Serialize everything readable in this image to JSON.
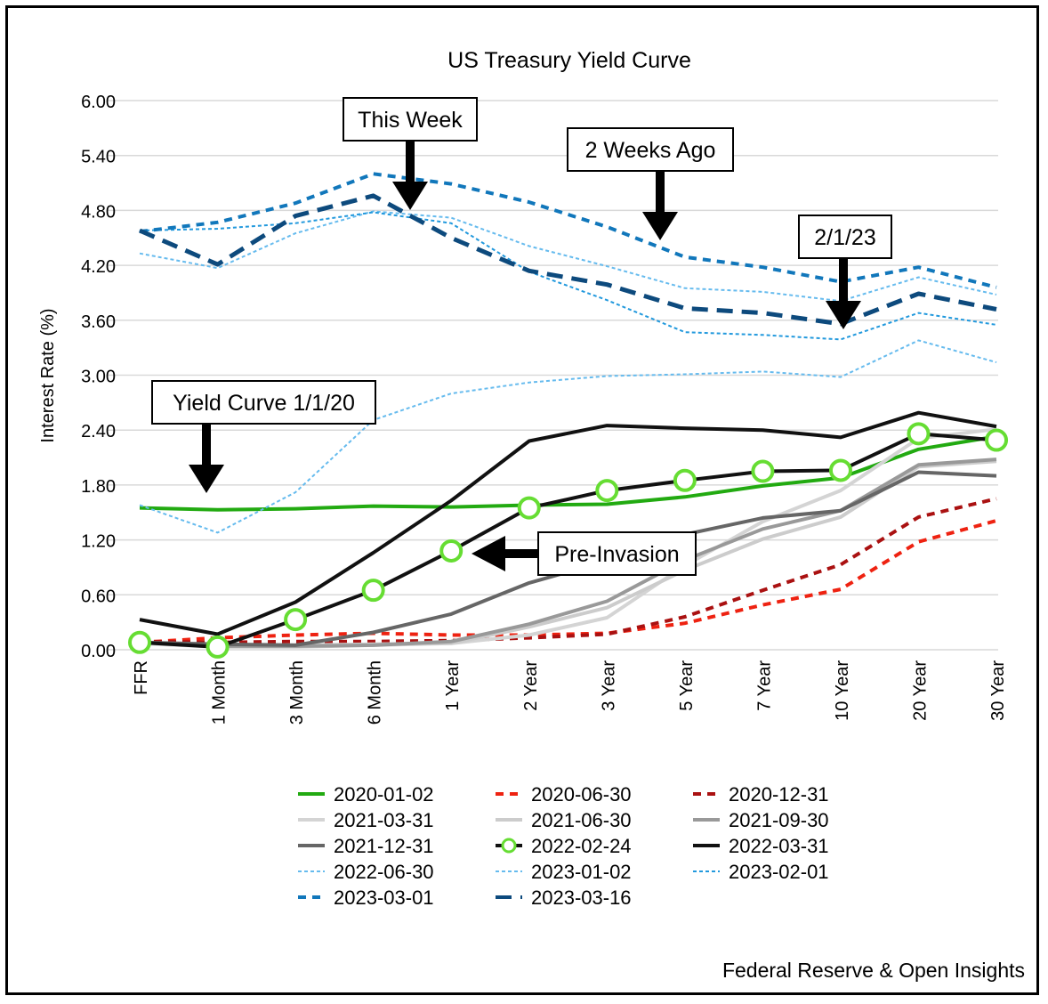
{
  "chart_data": {
    "type": "line",
    "title": "US Treasury Yield Curve",
    "ylabel": "Interest Rate (%)",
    "xlabel": "",
    "ylim": [
      0,
      6
    ],
    "yticks": [
      "0.00",
      "0.60",
      "1.20",
      "1.80",
      "2.40",
      "3.00",
      "3.60",
      "4.20",
      "4.80",
      "5.40",
      "6.00"
    ],
    "grid": true,
    "legend_position": "bottom",
    "categories": [
      "FFR",
      "1 Month",
      "3 Month",
      "6 Month",
      "1 Year",
      "2 Year",
      "3 Year",
      "5 Year",
      "7 Year",
      "10 Year",
      "20 Year",
      "30 Year"
    ],
    "series": [
      {
        "name": "2020-01-02",
        "color": "#22aa11",
        "style": "solid",
        "width": 4,
        "values": [
          1.55,
          1.53,
          1.54,
          1.57,
          1.56,
          1.58,
          1.59,
          1.67,
          1.79,
          1.88,
          2.19,
          2.33
        ]
      },
      {
        "name": "2020-06-30",
        "color": "#ee2211",
        "style": "dash",
        "width": 4,
        "values": [
          0.08,
          0.13,
          0.16,
          0.18,
          0.16,
          0.16,
          0.18,
          0.29,
          0.49,
          0.66,
          1.18,
          1.41
        ]
      },
      {
        "name": "2020-12-31",
        "color": "#aa1111",
        "style": "dash",
        "width": 4,
        "values": [
          0.09,
          0.08,
          0.09,
          0.09,
          0.1,
          0.13,
          0.17,
          0.36,
          0.65,
          0.93,
          1.45,
          1.65
        ]
      },
      {
        "name": "2021-03-31",
        "color": "#d4d4d4",
        "style": "solid",
        "width": 4,
        "values": [
          0.07,
          0.03,
          0.03,
          0.05,
          0.07,
          0.16,
          0.35,
          0.92,
          1.4,
          1.74,
          2.31,
          2.41
        ]
      },
      {
        "name": "2021-06-30",
        "color": "#cccccc",
        "style": "solid",
        "width": 4,
        "values": [
          0.08,
          0.05,
          0.05,
          0.06,
          0.07,
          0.25,
          0.46,
          0.87,
          1.21,
          1.45,
          2.0,
          2.06
        ]
      },
      {
        "name": "2021-09-30",
        "color": "#999999",
        "style": "solid",
        "width": 4,
        "values": [
          0.08,
          0.04,
          0.04,
          0.05,
          0.09,
          0.28,
          0.53,
          0.98,
          1.32,
          1.52,
          2.02,
          2.08
        ]
      },
      {
        "name": "2021-12-31",
        "color": "#666666",
        "style": "solid",
        "width": 4,
        "values": [
          0.08,
          0.06,
          0.05,
          0.19,
          0.39,
          0.73,
          0.97,
          1.26,
          1.44,
          1.52,
          1.94,
          1.9
        ]
      },
      {
        "name": "2022-02-24",
        "color": "#111111",
        "style": "solid",
        "width": 4,
        "marker": "circle",
        "marker_color": "#66dd33",
        "values": [
          0.08,
          0.03,
          0.33,
          0.65,
          1.08,
          1.55,
          1.74,
          1.85,
          1.95,
          1.96,
          2.36,
          2.29
        ]
      },
      {
        "name": "2022-03-31",
        "color": "#111111",
        "style": "solid",
        "width": 4,
        "values": [
          0.33,
          0.17,
          0.52,
          1.06,
          1.63,
          2.28,
          2.45,
          2.42,
          2.4,
          2.32,
          2.59,
          2.44
        ]
      },
      {
        "name": "2022-06-30",
        "color": "#66bbee",
        "style": "dot",
        "width": 2,
        "values": [
          1.58,
          1.28,
          1.72,
          2.51,
          2.8,
          2.92,
          2.99,
          3.01,
          3.04,
          2.98,
          3.38,
          3.14
        ]
      },
      {
        "name": "2023-01-02",
        "color": "#66bbee",
        "style": "dot",
        "width": 2,
        "values": [
          4.33,
          4.17,
          4.55,
          4.79,
          4.72,
          4.41,
          4.19,
          3.95,
          3.91,
          3.81,
          4.07,
          3.88
        ]
      },
      {
        "name": "2023-02-01",
        "color": "#2299dd",
        "style": "dot",
        "width": 2,
        "values": [
          4.58,
          4.6,
          4.66,
          4.78,
          4.66,
          4.13,
          3.82,
          3.47,
          3.44,
          3.39,
          3.68,
          3.55
        ]
      },
      {
        "name": "2023-03-01",
        "color": "#1177bb",
        "style": "dash",
        "width": 4,
        "values": [
          4.57,
          4.67,
          4.88,
          5.2,
          5.09,
          4.89,
          4.62,
          4.29,
          4.18,
          4.02,
          4.18,
          3.96
        ]
      },
      {
        "name": "2023-03-16",
        "color": "#0d4a7d",
        "style": "bigdash",
        "width": 5,
        "values": [
          4.58,
          4.21,
          4.74,
          4.96,
          4.5,
          4.14,
          3.99,
          3.73,
          3.68,
          3.56,
          3.89,
          3.72
        ]
      }
    ],
    "annotations": [
      {
        "text": "This Week"
      },
      {
        "text": "2 Weeks Ago"
      },
      {
        "text": "2/1/23"
      },
      {
        "text": "Yield Curve 1/1/20"
      },
      {
        "text": "Pre-Invasion"
      }
    ],
    "source": "Federal Reserve & Open Insights"
  }
}
